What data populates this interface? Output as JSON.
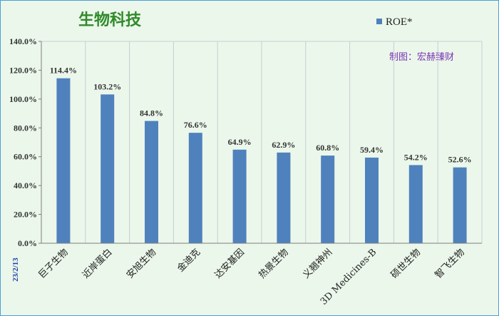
{
  "chart_data": {
    "type": "bar",
    "title": "生物科技",
    "categories": [
      "巨子生物",
      "近岸蛋白",
      "安旭生物",
      "金迪克",
      "达安基因",
      "热景生物",
      "义翘神州",
      "3D Medicines-B",
      "硕世生物",
      "智飞生物"
    ],
    "series": [
      {
        "name": "ROE*",
        "values": [
          114.4,
          103.2,
          84.8,
          76.6,
          64.9,
          62.9,
          60.8,
          59.4,
          54.2,
          52.6
        ]
      }
    ],
    "data_labels": [
      "114.4%",
      "103.2%",
      "84.8%",
      "76.6%",
      "64.9%",
      "62.9%",
      "60.8%",
      "59.4%",
      "54.2%",
      "52.6%"
    ],
    "y_ticks": [
      "0.0%",
      "20.0%",
      "40.0%",
      "60.0%",
      "80.0%",
      "100.0%",
      "120.0%",
      "140.0%"
    ],
    "ylim": [
      0,
      140
    ],
    "legend_position": "top-right",
    "grid": "vertical",
    "bar_color": "#4f81bd",
    "annotation": "制图：宏赫臻财",
    "date_label": "23/2/13"
  }
}
